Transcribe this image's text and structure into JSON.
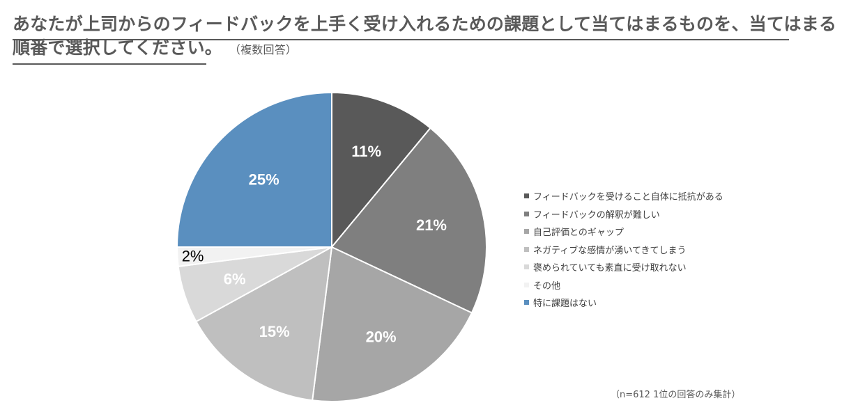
{
  "title": {
    "line1": "あなたが上司からのフィードバックを上手く受け入れるための課題として当てはまるものを、当てはまる",
    "line2": "順番で選択してください。",
    "note": "（複数回答）"
  },
  "footnote": "（n=612 1位の回答のみ集計）",
  "chart_data": {
    "type": "pie",
    "categories": [
      "フィードバックを受けること自体に抵抗がある",
      "フィードバックの解釈が難しい",
      "自己評価とのギャップ",
      "ネガティブな感情が湧いてきてしまう",
      "褒められていても素直に受け取れない",
      "その他",
      "特に課題はない"
    ],
    "values": [
      11,
      21,
      20,
      15,
      6,
      2,
      25
    ],
    "labels": [
      "11%",
      "21%",
      "20%",
      "15%",
      "6%",
      "2%",
      "25%"
    ],
    "colors": [
      "#595959",
      "#7f7f7f",
      "#a6a6a6",
      "#bfbfbf",
      "#d9d9d9",
      "#f2f2f2",
      "#5a8fbf"
    ],
    "label_colors": [
      "#ffffff",
      "#ffffff",
      "#ffffff",
      "#ffffff",
      "#ffffff",
      "#000000",
      "#ffffff"
    ],
    "legend_position": "right"
  }
}
